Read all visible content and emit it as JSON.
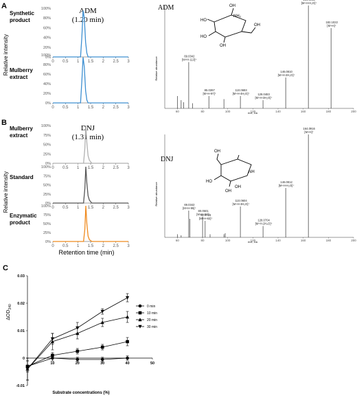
{
  "panel_letters": [
    "A",
    "B",
    "C"
  ],
  "panelA": {
    "compound_label": "ADM",
    "retention_label": "(1.20 min)",
    "ylabel": "Relative intensity",
    "traces": [
      {
        "label_lines": [
          "Synthetic",
          "product"
        ],
        "color": "#3d8fd1"
      },
      {
        "label_lines": [
          "Mulberry",
          "extract"
        ],
        "color": "#3d8fd1"
      }
    ]
  },
  "panelB": {
    "compound_label": "DNJ",
    "retention_label": "(1.31 min)",
    "ylabel": "Relative intensity",
    "xlabel": "Retention time (min)",
    "traces": [
      {
        "label_lines": [
          "Mulberry",
          "extract"
        ],
        "color": "#b0b0b0"
      },
      {
        "label_lines": [
          "Standard"
        ],
        "color": "#555555"
      },
      {
        "label_lines": [
          "Enzymatic",
          "product"
        ],
        "color": "#ef8a1e"
      }
    ]
  },
  "spectrumADM": {
    "title": "ADM",
    "ylabel": "Relative abundance",
    "xlabel": "m/z, Da"
  },
  "spectrumDNJ": {
    "title": "DNJ",
    "ylabel": "Relative abundance",
    "xlabel": "m/z, Da"
  },
  "panelC": {
    "ylabel": "ΔOD",
    "ylabel_sub": "340",
    "xlabel": "Substrate concentrations (%)",
    "legend": [
      "0 min",
      "10 min",
      "20 min",
      "30 min"
    ]
  },
  "chart_data": [
    {
      "id": "chrom-adm-synthetic",
      "type": "line",
      "x": [
        0,
        1.1,
        1.15,
        1.2,
        1.25,
        1.3,
        1.35,
        1.4,
        3
      ],
      "y": [
        0,
        0,
        40,
        95,
        80,
        30,
        8,
        0,
        0
      ],
      "xlim": [
        0,
        3
      ],
      "ylim": [
        0,
        100
      ],
      "xticks": [
        0,
        0.5,
        1,
        1.5,
        2,
        2.5,
        3
      ],
      "yticks": [
        "0%",
        "20%",
        "40%",
        "60%",
        "80%",
        "100%"
      ]
    },
    {
      "id": "chrom-adm-mulberry",
      "type": "line",
      "x": [
        0,
        1.1,
        1.15,
        1.2,
        1.25,
        1.3,
        1.35,
        1.4,
        3
      ],
      "y": [
        0,
        0,
        45,
        95,
        75,
        25,
        6,
        0,
        0
      ],
      "xlim": [
        0,
        3
      ],
      "ylim": [
        0,
        100
      ],
      "xticks": [
        0,
        0.5,
        1,
        1.5,
        2,
        2.5,
        3
      ],
      "yticks": [
        "0%",
        "20%",
        "40%",
        "60%",
        "80%",
        "100%"
      ]
    },
    {
      "id": "chrom-dnj-mulberry",
      "type": "line",
      "x": [
        0,
        1.22,
        1.27,
        1.31,
        1.35,
        1.4,
        1.45,
        1.55,
        3
      ],
      "y": [
        0,
        0,
        40,
        100,
        55,
        20,
        8,
        0,
        0
      ],
      "xlim": [
        0,
        3
      ],
      "ylim": [
        0,
        100
      ],
      "xticks": [
        0,
        0.5,
        1,
        1.5,
        2,
        2.5,
        3
      ],
      "yticks": [
        "0%",
        "25%",
        "50%",
        "75%",
        "100%"
      ]
    },
    {
      "id": "chrom-dnj-standard",
      "type": "line",
      "x": [
        0,
        1.22,
        1.27,
        1.31,
        1.35,
        1.4,
        1.45,
        1.55,
        3
      ],
      "y": [
        0,
        0,
        40,
        100,
        55,
        20,
        8,
        0,
        0
      ],
      "xlim": [
        0,
        3
      ],
      "ylim": [
        0,
        100
      ],
      "xticks": [
        0,
        0.5,
        1,
        1.5,
        2,
        2.5,
        3
      ],
      "yticks": [
        "0%",
        "25%",
        "50%",
        "75%",
        "100%"
      ]
    },
    {
      "id": "chrom-dnj-enzymatic",
      "type": "line",
      "x": [
        0,
        1.22,
        1.27,
        1.31,
        1.35,
        1.4,
        1.45,
        1.55,
        3
      ],
      "y": [
        0,
        0,
        35,
        100,
        50,
        15,
        5,
        0,
        0
      ],
      "xlim": [
        0,
        3
      ],
      "ylim": [
        0,
        100
      ],
      "xticks": [
        0,
        0.5,
        1,
        1.5,
        2,
        2.5,
        3
      ],
      "yticks": [
        "0%",
        "25%",
        "50%",
        "75%",
        "100%"
      ],
      "xlabel": "Retention time (min)"
    },
    {
      "id": "ms-adm",
      "type": "bar",
      "xlim": [
        50,
        200
      ],
      "ylim": [
        0,
        100
      ],
      "xticks": [
        60,
        80,
        100,
        120,
        140,
        160,
        180,
        200
      ],
      "peaks": [
        {
          "mz": 60,
          "rel": 12
        },
        {
          "mz": 63,
          "rel": 8
        },
        {
          "mz": 65,
          "rel": 6
        },
        {
          "mz": 69.0342,
          "rel": 45,
          "label": [
            "69.0342",
            "[M+H-113]⁺"
          ]
        },
        {
          "mz": 72,
          "rel": 5
        },
        {
          "mz": 85.0397,
          "rel": 12,
          "label": [
            "85.0397",
            "[M+H-97]⁺"
          ]
        },
        {
          "mz": 97,
          "rel": 9
        },
        {
          "mz": 110.0693,
          "rel": 12,
          "label": [
            "110.0693",
            "[M+H-4H₂O]⁺"
          ]
        },
        {
          "mz": 128.0483,
          "rel": 8,
          "label": [
            "128.0483",
            "[M+H-3H₂O]⁺"
          ]
        },
        {
          "mz": 146.081,
          "rel": 30,
          "label": [
            "146.0810",
            "[M+H-2H₂O]⁺"
          ]
        },
        {
          "mz": 164.0913,
          "rel": 100,
          "label": [
            "164.0913",
            "[M+H-H₂O]⁺"
          ]
        },
        {
          "mz": 182.1022,
          "rel": 78,
          "label": [
            "182.1022",
            "[M+H]⁺"
          ]
        }
      ]
    },
    {
      "id": "ms-dnj",
      "type": "bar",
      "xlim": [
        50,
        200
      ],
      "ylim": [
        0,
        100
      ],
      "xticks": [
        60,
        80,
        100,
        120,
        140,
        160,
        180,
        200
      ],
      "peaks": [
        {
          "mz": 60,
          "rel": 3
        },
        {
          "mz": 63,
          "rel": 2
        },
        {
          "mz": 69.0342,
          "rel": 26,
          "label": [
            "69.0342",
            "[M+H-95]⁺"
          ]
        },
        {
          "mz": 70,
          "rel": 18
        },
        {
          "mz": 80.0501,
          "rel": 20,
          "label": [
            "80.0501",
            "[M+H-84]⁺"
          ]
        },
        {
          "mz": 82.0716,
          "rel": 16,
          "label": [
            "82.0716",
            "[M+H-82]⁺"
          ]
        },
        {
          "mz": 86,
          "rel": 3
        },
        {
          "mz": 97,
          "rel": 3
        },
        {
          "mz": 98,
          "rel": 4
        },
        {
          "mz": 110.0604,
          "rel": 30,
          "label": [
            "110.0604",
            "[M+H-3H₂O]⁺"
          ]
        },
        {
          "mz": 128.0704,
          "rel": 11,
          "label": [
            "128.0704",
            "[M+H-2H₂O]⁺"
          ]
        },
        {
          "mz": 146.0812,
          "rel": 48,
          "label": [
            "146.0812",
            "[M+H-H₂O]⁺"
          ]
        },
        {
          "mz": 164.0916,
          "rel": 100,
          "label": [
            "164.0916",
            "[M+H]⁺"
          ]
        }
      ]
    },
    {
      "id": "od-kinetics",
      "type": "line",
      "x": [
        0,
        10,
        20,
        30,
        40
      ],
      "xlim": [
        0,
        50
      ],
      "ylim": [
        -0.01,
        0.03
      ],
      "xticks": [
        10,
        20,
        30,
        40,
        50
      ],
      "yticks": [
        -0.01,
        0,
        0.01,
        0.02,
        0.03
      ],
      "xlabel": "Substrate concentrations (%)",
      "series": [
        {
          "name": "0 min",
          "marker": "circle",
          "values": [
            -0.003,
            0.0,
            -0.0005,
            -0.0005,
            0.0
          ],
          "err": [
            0.002,
            0.001,
            0.0008,
            0.0008,
            0.0008
          ]
        },
        {
          "name": "10 min",
          "marker": "square",
          "values": [
            -0.003,
            0.001,
            0.0025,
            0.004,
            0.006
          ],
          "err": [
            0.002,
            0.001,
            0.001,
            0.001,
            0.0015
          ]
        },
        {
          "name": "20 min",
          "marker": "triangle",
          "values": [
            -0.004,
            0.006,
            0.009,
            0.013,
            0.015
          ],
          "err": [
            0.004,
            0.003,
            0.002,
            0.0015,
            0.002
          ]
        },
        {
          "name": "30 min",
          "marker": "triangle-down",
          "values": [
            -0.004,
            0.007,
            0.011,
            0.017,
            0.022
          ],
          "err": [
            0.004,
            0.002,
            0.002,
            0.001,
            0.0015
          ]
        }
      ]
    }
  ]
}
